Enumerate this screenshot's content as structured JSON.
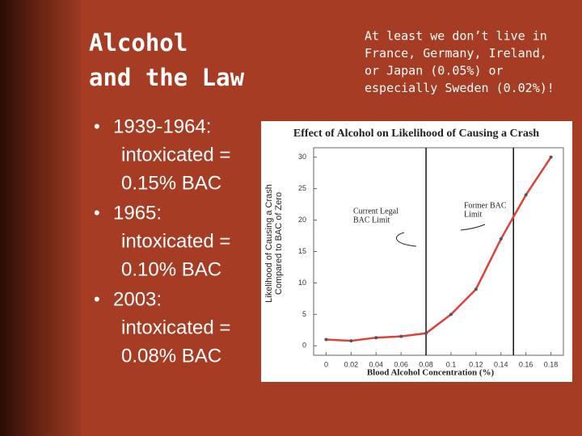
{
  "slide": {
    "title_lines": [
      "Alcohol",
      "and the Law"
    ],
    "note_lines": [
      "At least we don’t live in",
      "France, Germany, Ireland,",
      "or Japan (0.05%) or",
      "especially Sweden (0.02%)!"
    ],
    "bullets": [
      [
        "1939-1964:",
        "intoxicated =",
        "0.15% BAC"
      ],
      [
        "1965:",
        "intoxicated =",
        "0.10% BAC"
      ],
      [
        "2003:",
        "intoxicated =",
        "0.08% BAC"
      ]
    ]
  },
  "chart_data": {
    "type": "line",
    "title": "Effect of Alcohol on Likelihood of Causing a Crash",
    "ylabel_lines": [
      "Likelihood of Causing a Crash",
      "Compared to BAC of Zero"
    ],
    "xlabel": "Blood Alcohol Concentration (%)",
    "x": [
      0,
      0.02,
      0.04,
      0.06,
      0.08,
      0.1,
      0.12,
      0.14,
      0.16,
      0.18
    ],
    "series": [
      {
        "color": "#e0403a",
        "values": [
          1,
          0.8,
          1.3,
          1.5,
          2,
          5,
          9,
          17,
          24,
          30
        ]
      }
    ],
    "xlim": [
      -0.01,
      0.19
    ],
    "xticks": [
      0,
      0.02,
      0.04,
      0.06,
      0.08,
      0.1,
      0.12,
      0.14,
      0.16,
      0.18
    ],
    "ylim": [
      -1.5,
      31.5
    ],
    "yticks": [
      0,
      5,
      10,
      15,
      20,
      25,
      30
    ],
    "reference_lines": [
      0.08,
      0.15
    ],
    "annotations": [
      {
        "text_lines": [
          "Current Legal",
          "BAC Limit"
        ]
      },
      {
        "text_lines": [
          "Former BAC",
          "Limit"
        ]
      }
    ]
  }
}
